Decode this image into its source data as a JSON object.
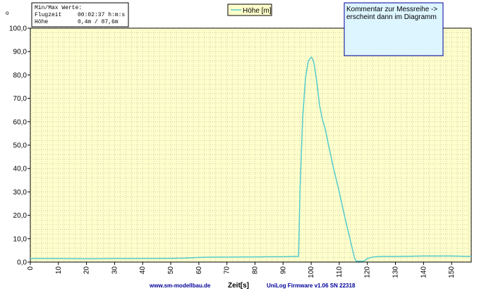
{
  "minmax_box": {
    "title": "Min/Max Werte:",
    "rows": [
      {
        "label": "Flugzeit",
        "value": "00:02:37 h:m:s"
      },
      {
        "label": "Höhe",
        "value": "0,4m / 87,6m"
      }
    ]
  },
  "top_left_marker": "o",
  "comment_box": {
    "line1": "Kommentar zur Messreihe ->",
    "line2": "erscheint dann im Diagramm"
  },
  "footer": {
    "website": "www.sm-modellbau.de",
    "firmware": "UniLog Firmware v1.06 SN 22318"
  },
  "colors": {
    "plot_background": "#ffffcc",
    "series_line": "#55cccc",
    "footer_text": "#000099"
  },
  "chart_data": {
    "type": "line",
    "xlabel": "Zeit[s]",
    "ylabel": "",
    "xlim": [
      0,
      157
    ],
    "ylim": [
      0,
      100
    ],
    "x_ticks": [
      0,
      10,
      20,
      30,
      40,
      50,
      60,
      70,
      80,
      90,
      100,
      110,
      120,
      130,
      140,
      150
    ],
    "x_tick_labels": [
      "0",
      "10",
      "20",
      "30",
      "40",
      "50",
      "60",
      "70",
      "80",
      "90",
      "100",
      "110",
      "120",
      "130",
      "140",
      "150"
    ],
    "y_ticks": [
      0,
      10,
      20,
      30,
      40,
      50,
      60,
      70,
      80,
      90,
      100
    ],
    "y_tick_labels": [
      "0,0",
      "10,0",
      "20,0",
      "30,0",
      "40,0",
      "50,0",
      "60,0",
      "70,0",
      "80,0",
      "90,0",
      "100,0"
    ],
    "grid": true,
    "legend_position": "top-center",
    "series": [
      {
        "name": "Höhe [m]",
        "x": [
          0,
          10,
          20,
          30,
          40,
          50,
          55,
          60,
          65,
          70,
          75,
          80,
          85,
          90,
          94,
          95.5,
          96,
          97,
          98,
          99,
          100,
          100.5,
          101,
          102,
          103,
          104,
          105,
          106,
          108,
          110,
          112,
          114,
          115,
          115.5,
          116,
          117,
          118,
          119,
          120,
          122,
          125,
          130,
          135,
          140,
          145,
          150,
          157
        ],
        "y": [
          1.5,
          1.5,
          1.4,
          1.5,
          1.5,
          1.6,
          1.7,
          2.0,
          2.1,
          2.1,
          2.2,
          2.2,
          2.3,
          2.3,
          2.4,
          2.4,
          30,
          62,
          79,
          86,
          87.6,
          87,
          85,
          77,
          67,
          61,
          57,
          51,
          40,
          30,
          19,
          9,
          4,
          1.5,
          0.4,
          0.4,
          0.4,
          0.5,
          1.5,
          2.2,
          2.4,
          2.4,
          2.5,
          2.6,
          2.6,
          2.6,
          2.4
        ]
      }
    ]
  }
}
